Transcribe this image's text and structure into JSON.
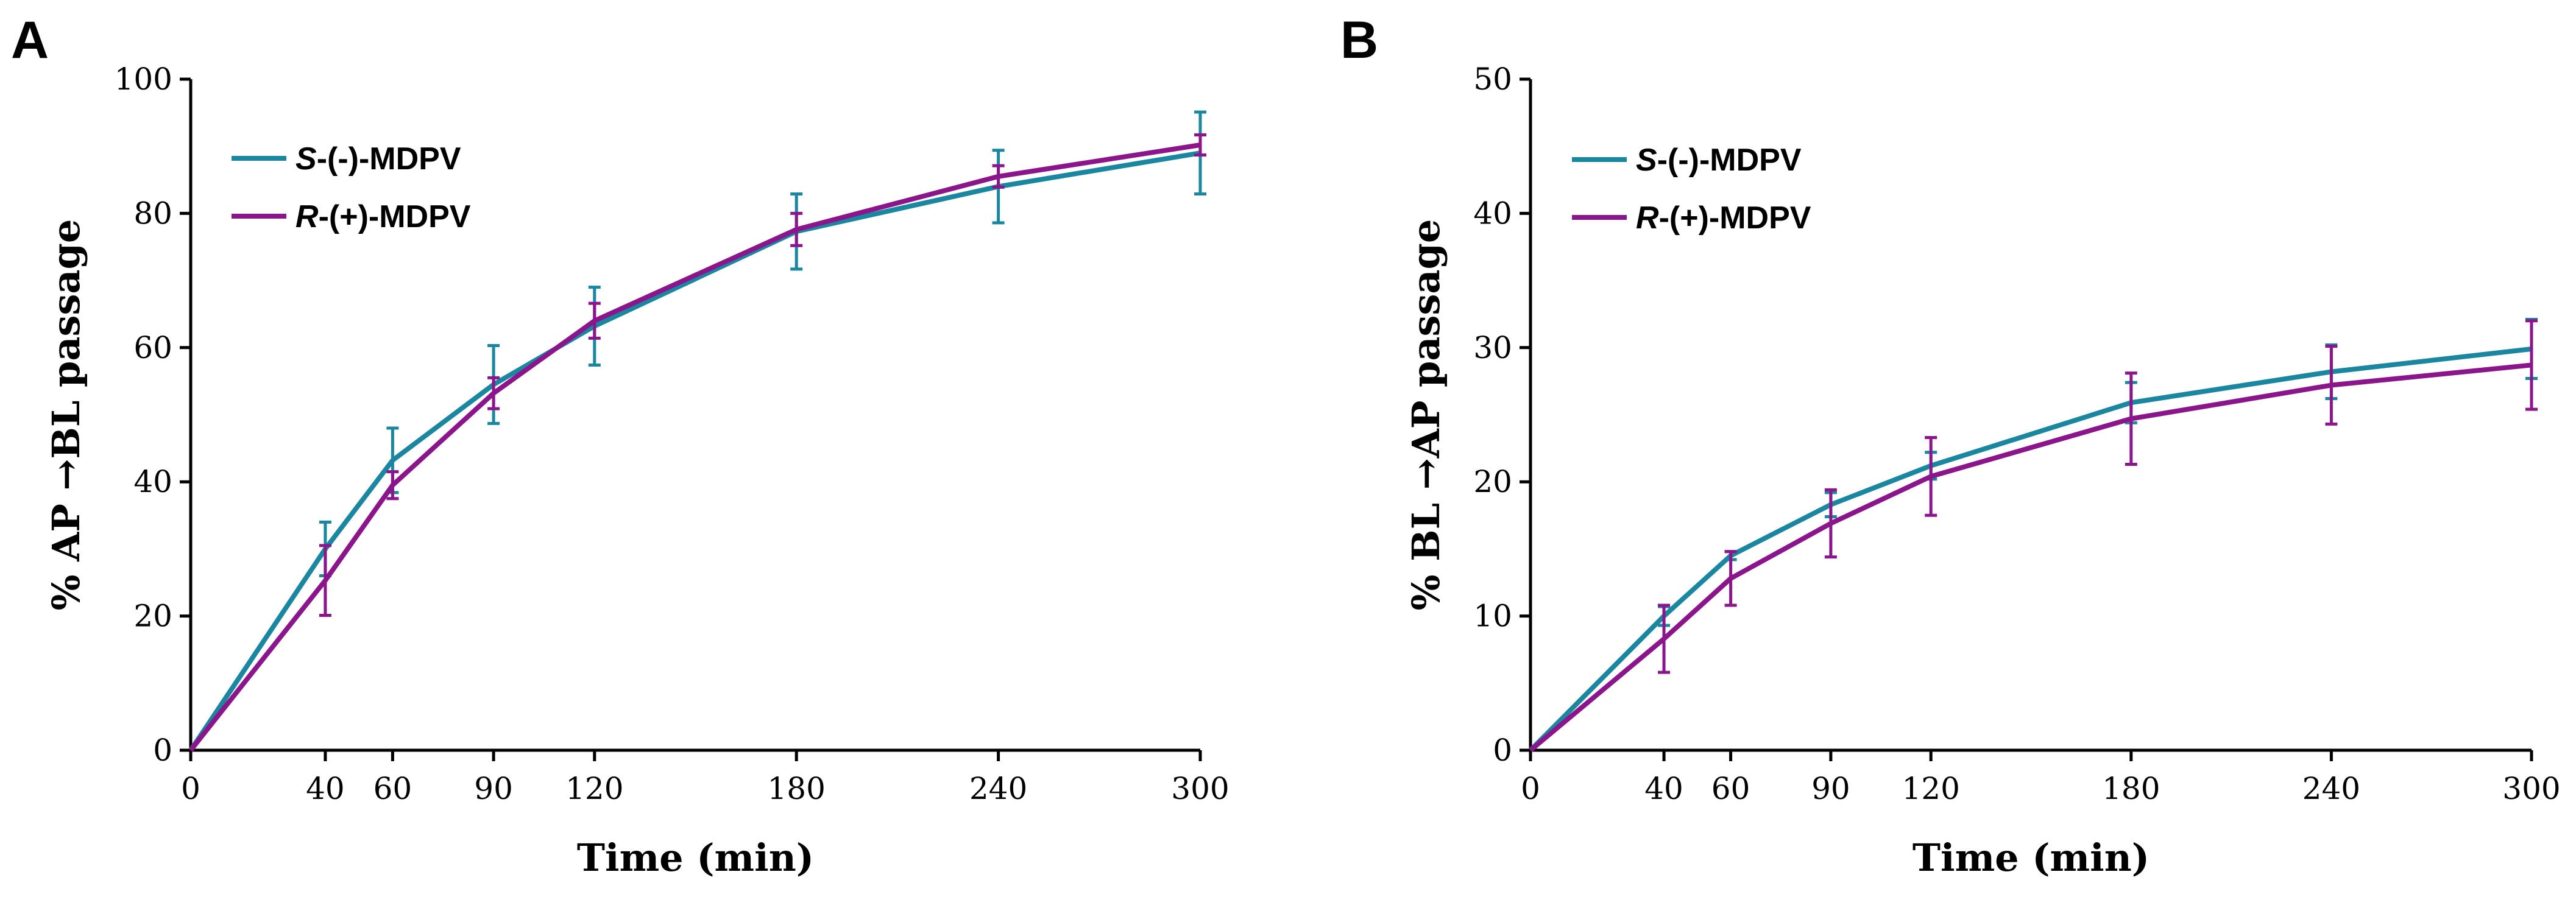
{
  "chart_data": [
    {
      "type": "line",
      "panel_label": "A",
      "xlabel": "Time (min)",
      "ylabel": "% AP →BL passage",
      "x": [
        0,
        40,
        60,
        90,
        120,
        180,
        240,
        300
      ],
      "xticks": [
        0,
        40,
        60,
        90,
        120,
        180,
        240,
        300
      ],
      "xlim": [
        0,
        300
      ],
      "ylim": [
        0,
        100
      ],
      "yticks": [
        0,
        20,
        40,
        60,
        80,
        100
      ],
      "grid": false,
      "legend_position": "top-left",
      "series": [
        {
          "name_prefix": "S",
          "name_suffix": "-(-)-MDPV",
          "color": "#1a86a0",
          "values": [
            0,
            30.0,
            43.2,
            54.5,
            63.2,
            77.3,
            84.0,
            89.0
          ],
          "errors": [
            0,
            4.0,
            4.8,
            5.8,
            5.8,
            5.6,
            5.4,
            6.1
          ]
        },
        {
          "name_prefix": "R",
          "name_suffix": "-(+)-MDPV",
          "color": "#8b168b",
          "values": [
            0,
            25.3,
            39.5,
            53.2,
            64.0,
            77.6,
            85.5,
            90.2
          ],
          "errors": [
            0,
            5.2,
            2.0,
            2.3,
            2.6,
            2.4,
            1.6,
            1.5
          ]
        }
      ]
    },
    {
      "type": "line",
      "panel_label": "B",
      "xlabel": "Time (min)",
      "ylabel": "% BL →AP passage",
      "x": [
        0,
        40,
        60,
        90,
        120,
        180,
        240,
        300
      ],
      "xticks": [
        0,
        40,
        60,
        90,
        120,
        180,
        240,
        300
      ],
      "xlim": [
        0,
        300
      ],
      "ylim": [
        0,
        50
      ],
      "yticks": [
        0,
        10,
        20,
        30,
        40,
        50
      ],
      "grid": false,
      "legend_position": "top-left",
      "series": [
        {
          "name_prefix": "S",
          "name_suffix": "-(-)-MDPV",
          "color": "#1a86a0",
          "values": [
            0,
            10.0,
            14.5,
            18.3,
            21.2,
            25.9,
            28.2,
            29.9
          ],
          "errors": [
            0,
            0.7,
            0.3,
            0.9,
            1.0,
            1.5,
            2.0,
            2.2
          ]
        },
        {
          "name_prefix": "R",
          "name_suffix": "-(+)-MDPV",
          "color": "#8b168b",
          "values": [
            0,
            8.3,
            12.8,
            16.9,
            20.4,
            24.7,
            27.2,
            28.7
          ],
          "errors": [
            0,
            2.5,
            2.0,
            2.5,
            2.9,
            3.4,
            2.9,
            3.3
          ]
        }
      ]
    }
  ]
}
